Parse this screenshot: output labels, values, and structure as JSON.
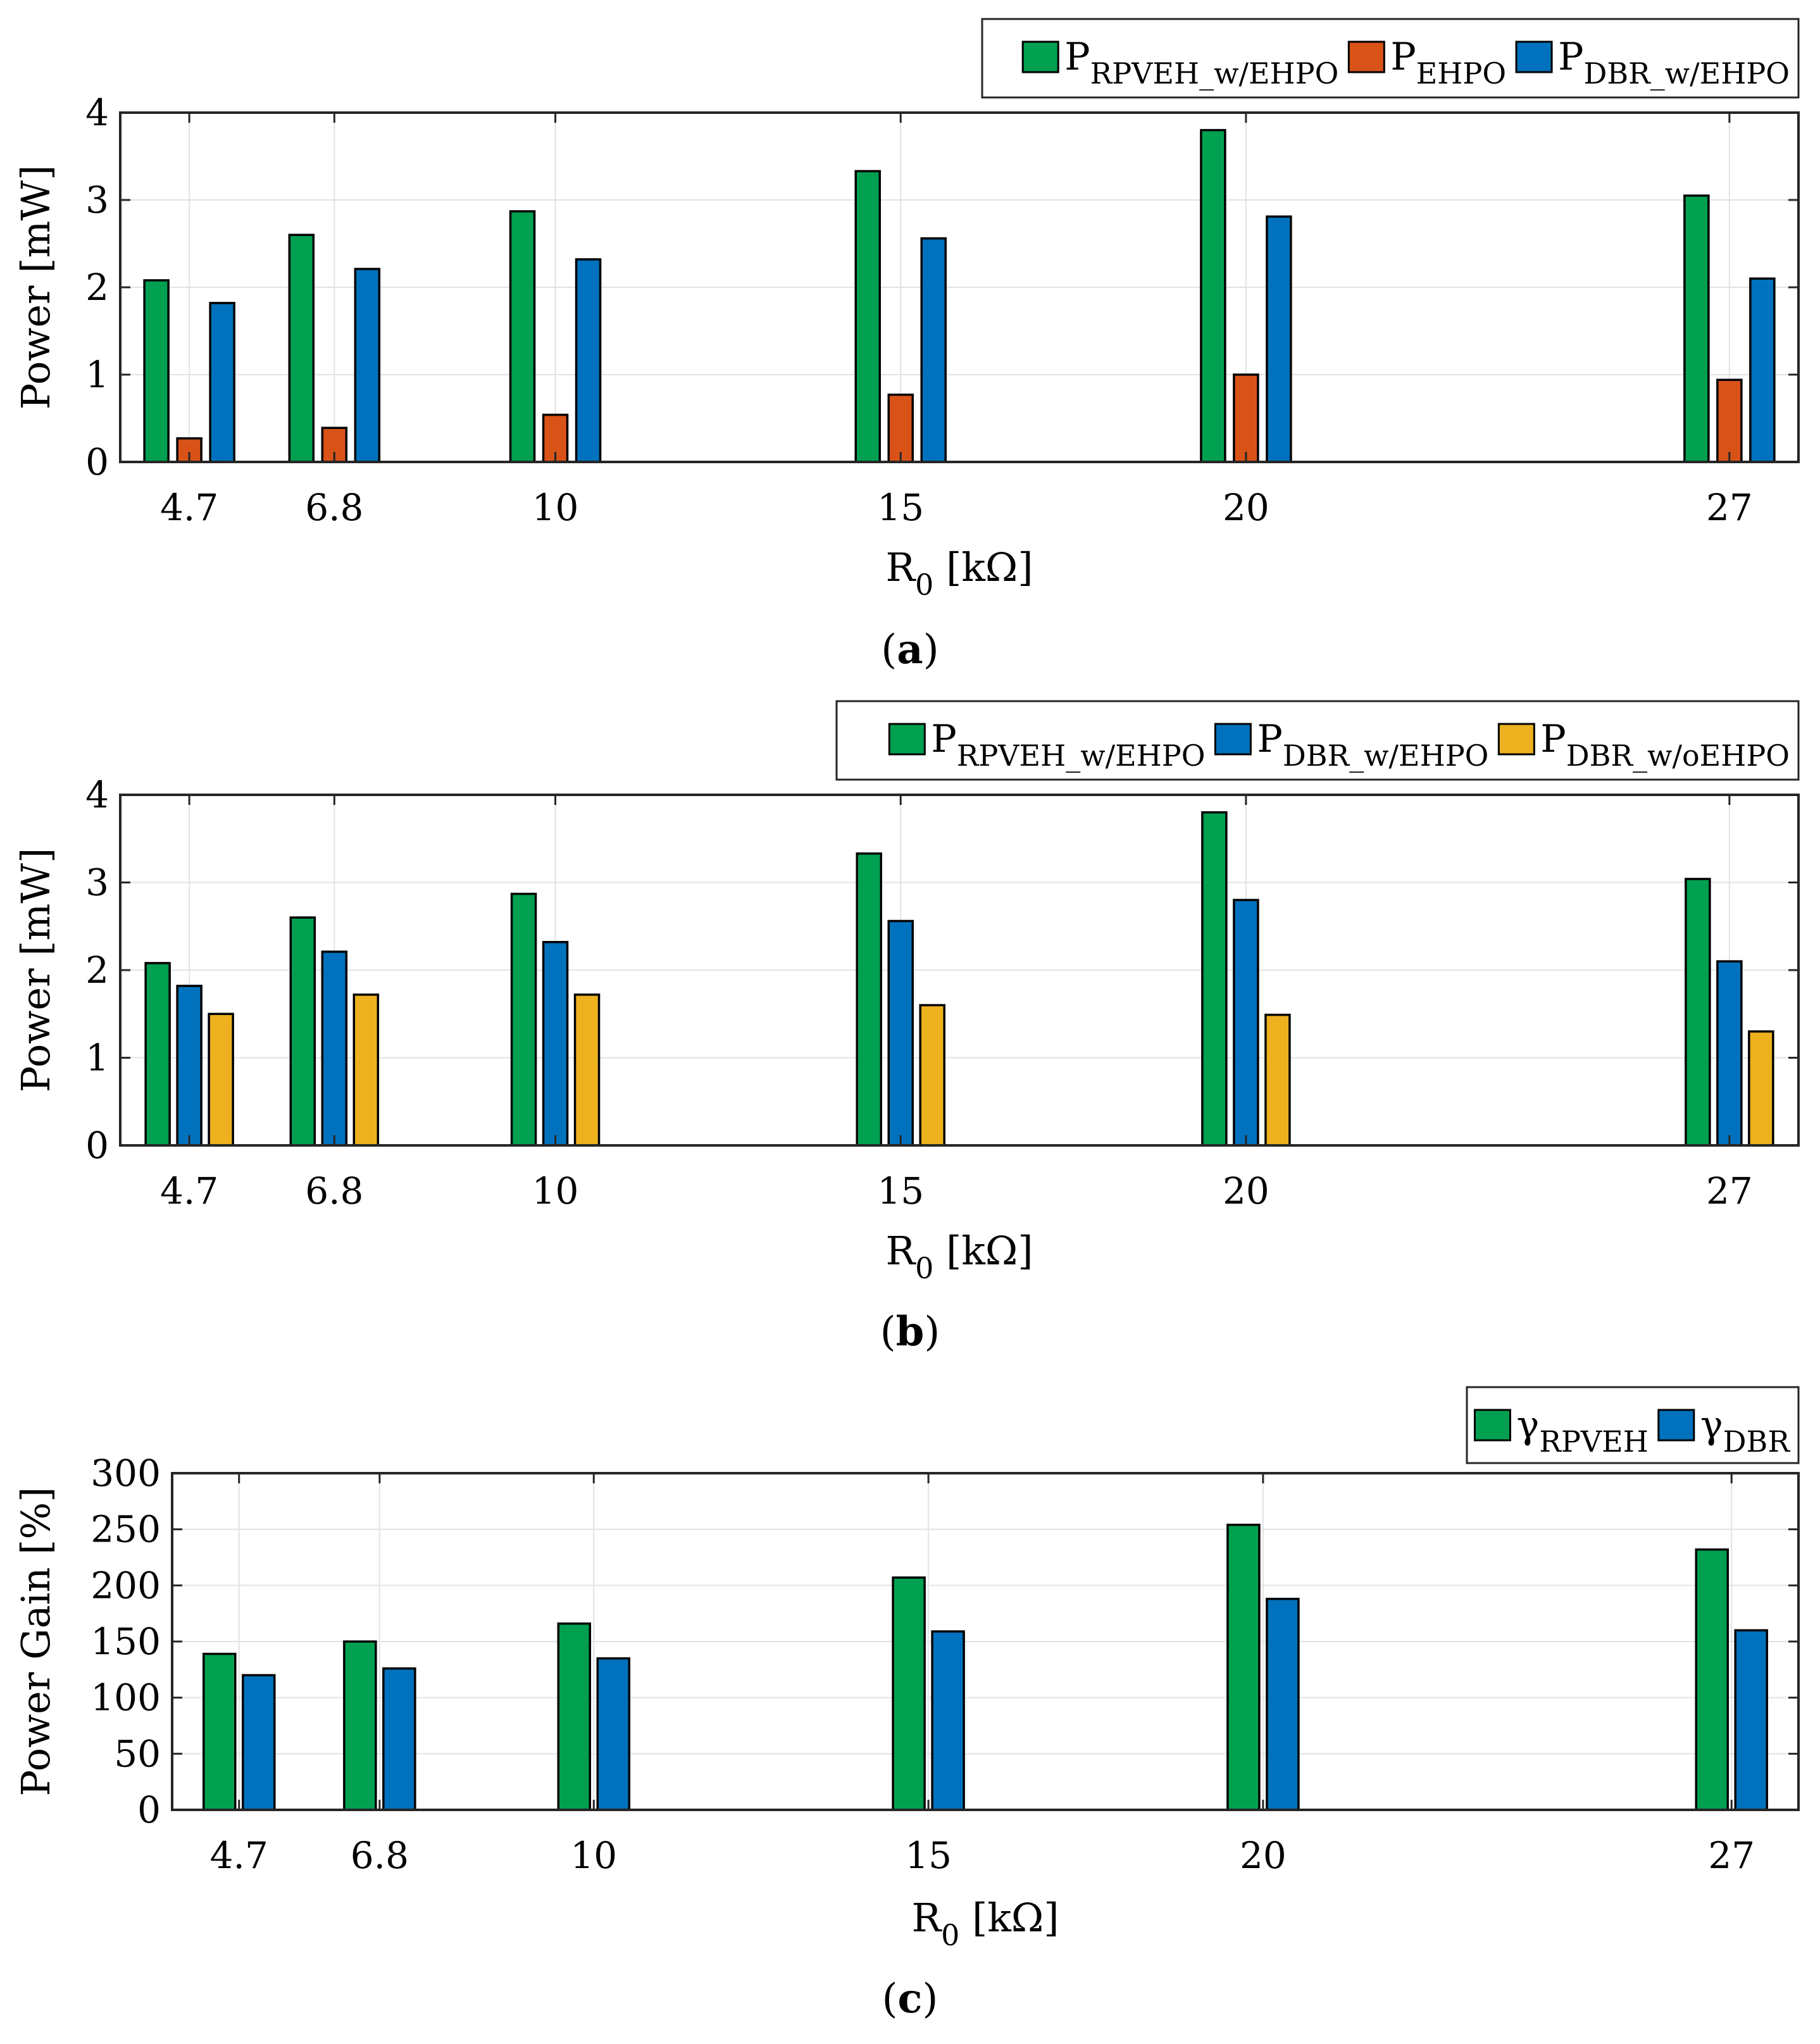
{
  "chart_data": [
    {
      "panel": "a",
      "type": "bar",
      "categories": [
        "4.7",
        "6.8",
        "10",
        "15",
        "20",
        "27"
      ],
      "x_positions": [
        4.7,
        6.8,
        10,
        15,
        20,
        27
      ],
      "xlim": [
        3.7,
        28.0
      ],
      "ylim": [
        0,
        4
      ],
      "yticks": [
        "0",
        "1",
        "2",
        "3",
        "4"
      ],
      "ylabel": "Power [mW]",
      "xlabel": {
        "main": "R",
        "sub": "0",
        "unit": " [kΩ]"
      },
      "grid": true,
      "legend_position": "top-right, outside",
      "series": [
        {
          "name": "P",
          "name_sub": "RPVEH_w/EHPO",
          "color": "#00a050",
          "values": [
            2.08,
            2.6,
            2.87,
            3.33,
            3.8,
            3.05
          ]
        },
        {
          "name": "P",
          "name_sub": "EHPO",
          "color": "#d95319",
          "values": [
            0.27,
            0.39,
            0.54,
            0.77,
            1.0,
            0.94
          ]
        },
        {
          "name": "P",
          "name_sub": "DBR_w/EHPO",
          "color": "#0072bd",
          "values": [
            1.82,
            2.21,
            2.32,
            2.56,
            2.81,
            2.1
          ]
        }
      ],
      "caption": {
        "open": "(",
        "letter": "a",
        "close": ")"
      }
    },
    {
      "panel": "b",
      "type": "bar",
      "categories": [
        "4.7",
        "6.8",
        "10",
        "15",
        "20",
        "27"
      ],
      "x_positions": [
        4.7,
        6.8,
        10,
        15,
        20,
        27
      ],
      "xlim": [
        3.7,
        28.0
      ],
      "ylim": [
        0,
        4
      ],
      "yticks": [
        "0",
        "1",
        "2",
        "3",
        "4"
      ],
      "ylabel": "Power [mW]",
      "xlabel": {
        "main": "R",
        "sub": "0",
        "unit": " [kΩ]"
      },
      "grid": true,
      "legend_position": "top-right, outside",
      "series": [
        {
          "name": "P",
          "name_sub": "RPVEH_w/EHPO",
          "color": "#00a050",
          "values": [
            2.08,
            2.6,
            2.87,
            3.33,
            3.8,
            3.04
          ]
        },
        {
          "name": "P",
          "name_sub": "DBR_w/EHPO",
          "color": "#0072bd",
          "values": [
            1.82,
            2.21,
            2.32,
            2.56,
            2.8,
            2.1
          ]
        },
        {
          "name": "P",
          "name_sub": "DBR_w/oEHPO",
          "color": "#edb120",
          "values": [
            1.5,
            1.72,
            1.72,
            1.6,
            1.49,
            1.3
          ]
        }
      ],
      "caption": {
        "open": "(",
        "letter": "b",
        "close": ")"
      }
    },
    {
      "panel": "c",
      "type": "bar",
      "categories": [
        "4.7",
        "6.8",
        "10",
        "15",
        "20",
        "27"
      ],
      "x_positions": [
        4.7,
        6.8,
        10,
        15,
        20,
        27
      ],
      "xlim": [
        3.7,
        28.0
      ],
      "ylim": [
        0,
        300
      ],
      "yticks": [
        "0",
        "50",
        "100",
        "150",
        "200",
        "250",
        "300"
      ],
      "ylabel": "Power Gain [%]",
      "xlabel": {
        "main": "R",
        "sub": "0",
        "unit": " [kΩ]"
      },
      "grid": true,
      "legend_position": "top-right, outside",
      "series": [
        {
          "name": "γ",
          "name_sub": "RPVEH",
          "color": "#00a050",
          "values": [
            139,
            150,
            166,
            207,
            254,
            232
          ]
        },
        {
          "name": "γ",
          "name_sub": "DBR",
          "color": "#0072bd",
          "values": [
            120,
            126,
            135,
            159,
            188,
            160
          ]
        }
      ],
      "caption": {
        "open": "(",
        "letter": "c",
        "close": ")"
      }
    }
  ]
}
